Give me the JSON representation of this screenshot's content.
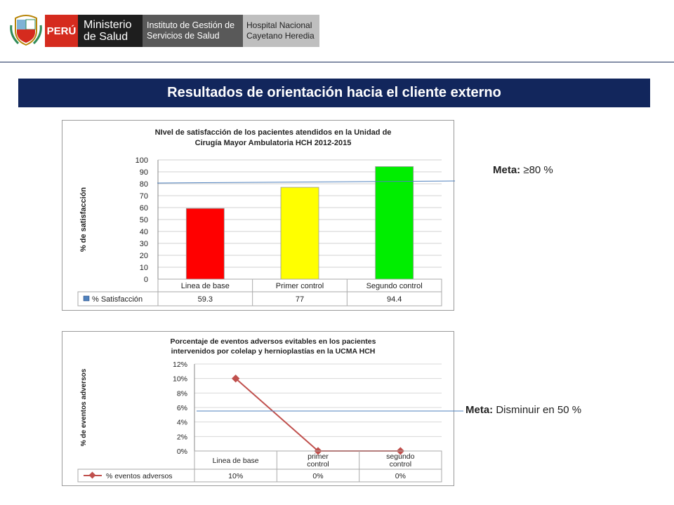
{
  "header": {
    "country": "PERÚ",
    "ministry_line1": "Ministerio",
    "ministry_line2": "de Salud",
    "institute_line1": "Instituto de Gestión de",
    "institute_line2": "Servicios de Salud",
    "hospital_line1": "Hospital Nacional",
    "hospital_line2": "Cayetano Heredia"
  },
  "slide_title": "Resultados de orientación hacia el cliente externo",
  "meta1": {
    "label": "Meta:",
    "value": "≥80 %"
  },
  "meta2": {
    "label": "Meta:",
    "value": "Disminuir en 50 %"
  },
  "colors": {
    "navy": "#12265c",
    "red": "#ff0000",
    "yellow": "#ffff00",
    "green": "#00ee00",
    "line": "#c0504d"
  },
  "chart_data": [
    {
      "type": "bar",
      "title_line1": "NIvel de satisfacción de los pacientes atendidos en la Unidad de",
      "title_line2": "Cirugía Mayor Ambulatoria HCH 2012-2015",
      "ylabel": "% de satisfacción",
      "ylim": [
        0,
        100
      ],
      "yticks": [
        "0",
        "10",
        "20",
        "30",
        "40",
        "50",
        "60",
        "70",
        "80",
        "90",
        "100"
      ],
      "categories": [
        "Linea de base",
        "Primer control",
        "Segundo control"
      ],
      "series": [
        {
          "name": "% Satisfacción",
          "values": [
            59.3,
            77,
            94.4
          ],
          "labels": [
            "59.3",
            "77",
            "94.4"
          ]
        }
      ],
      "bar_colors": [
        "#ff0000",
        "#ffff00",
        "#00ee00"
      ],
      "target_line": 80,
      "grid": true,
      "legend": "data-table"
    },
    {
      "type": "line",
      "title_line1": "Porcentaje de eventos adversos evitables en los pacientes",
      "title_line2": "intervenidos por colelap y hernioplastías en la UCMA HCH",
      "ylabel": "% de eventos adversos",
      "ylim": [
        0,
        0.12
      ],
      "yticks": [
        "0%",
        "2%",
        "4%",
        "6%",
        "8%",
        "10%",
        "12%"
      ],
      "categories": [
        "Linea de base",
        "primer control",
        "segundo control"
      ],
      "series": [
        {
          "name": "% eventos adversos",
          "values": [
            0.1,
            0,
            0
          ],
          "labels": [
            "10%",
            "0%",
            "0%"
          ]
        }
      ],
      "target_line": 0.05,
      "grid": true,
      "legend": "data-table"
    }
  ]
}
